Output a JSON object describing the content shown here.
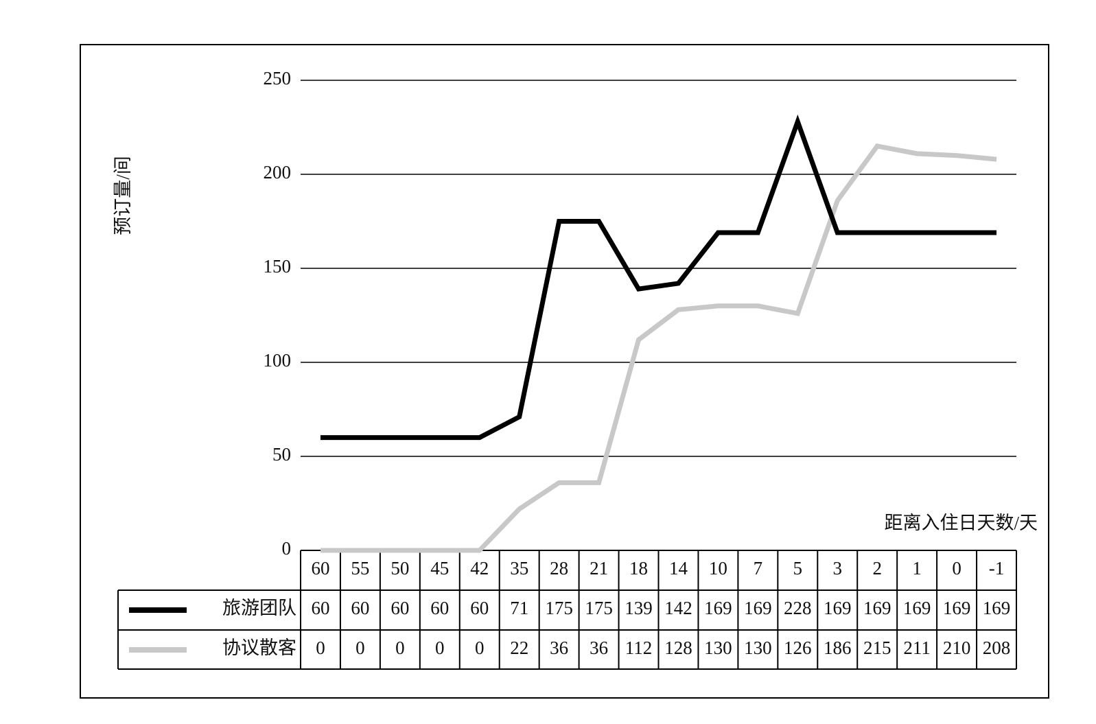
{
  "chart_data": {
    "type": "line",
    "y_label": "预订量/间",
    "x_label": "距离入住日天数/天",
    "categories": [
      "60",
      "55",
      "50",
      "45",
      "42",
      "35",
      "28",
      "21",
      "18",
      "14",
      "10",
      "7",
      "5",
      "3",
      "2",
      "1",
      "0",
      "-1"
    ],
    "series": [
      {
        "name": "旅游团队",
        "color": "#000000",
        "values": [
          60,
          60,
          60,
          60,
          60,
          71,
          175,
          175,
          139,
          142,
          169,
          169,
          228,
          169,
          169,
          169,
          169,
          169
        ]
      },
      {
        "name": "协议散客",
        "color": "#c8c8c8",
        "values": [
          0,
          0,
          0,
          0,
          0,
          22,
          36,
          36,
          112,
          128,
          130,
          130,
          126,
          186,
          215,
          211,
          210,
          208
        ]
      }
    ],
    "ylim": [
      0,
      250
    ],
    "yticks": [
      0,
      50,
      100,
      150,
      200,
      250
    ],
    "grid": true
  }
}
